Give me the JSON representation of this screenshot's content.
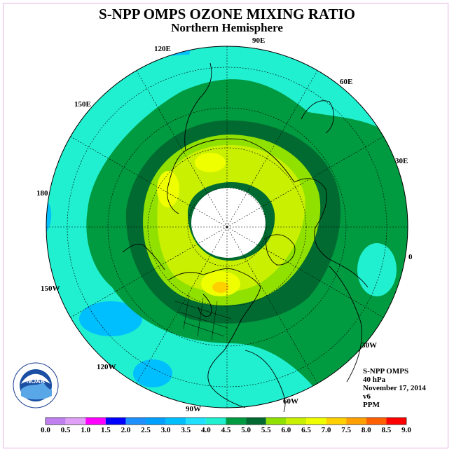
{
  "title": "S-NPP OMPS OZONE MIXING RATIO",
  "subtitle": "Northern Hemisphere",
  "meridian_labels": [
    "0",
    "30E",
    "60E",
    "90E",
    "120E",
    "150E",
    "180",
    "150W",
    "120W",
    "90W",
    "60W",
    "30W"
  ],
  "info": {
    "instrument": "S-NPP OMPS",
    "pressure": "40 hPa",
    "date": "November 17, 2014",
    "version": "v6",
    "units": "PPM"
  },
  "logo_text": "NOAA",
  "colorbar": {
    "ticks": [
      "0.0",
      "0.5",
      "1.0",
      "1.5",
      "2.0",
      "2.5",
      "3.0",
      "3.5",
      "4.0",
      "4.5",
      "5.0",
      "5.5",
      "6.0",
      "6.5",
      "7.0",
      "7.5",
      "8.0",
      "8.5",
      "9.0"
    ],
    "colors": [
      "#c080f0",
      "#e0a0f8",
      "#ff00ff",
      "#0000ff",
      "#1e90ff",
      "#00a0ff",
      "#00bfff",
      "#20e0ff",
      "#20f0d0",
      "#009a40",
      "#006a30",
      "#90e000",
      "#c8f000",
      "#f0ff00",
      "#ffd000",
      "#ffa000",
      "#ff6000",
      "#ff0000",
      "#8b5a2b"
    ]
  },
  "field_colors": {
    "cyan": "#20f0d0",
    "light_blue": "#00bfff",
    "green": "#009a40",
    "dark_green": "#006a30",
    "lime": "#90e000",
    "yellow_green": "#c8f000",
    "yellow": "#f0ff00",
    "orange": "#ffd000",
    "polar_night": "#ffffff"
  }
}
